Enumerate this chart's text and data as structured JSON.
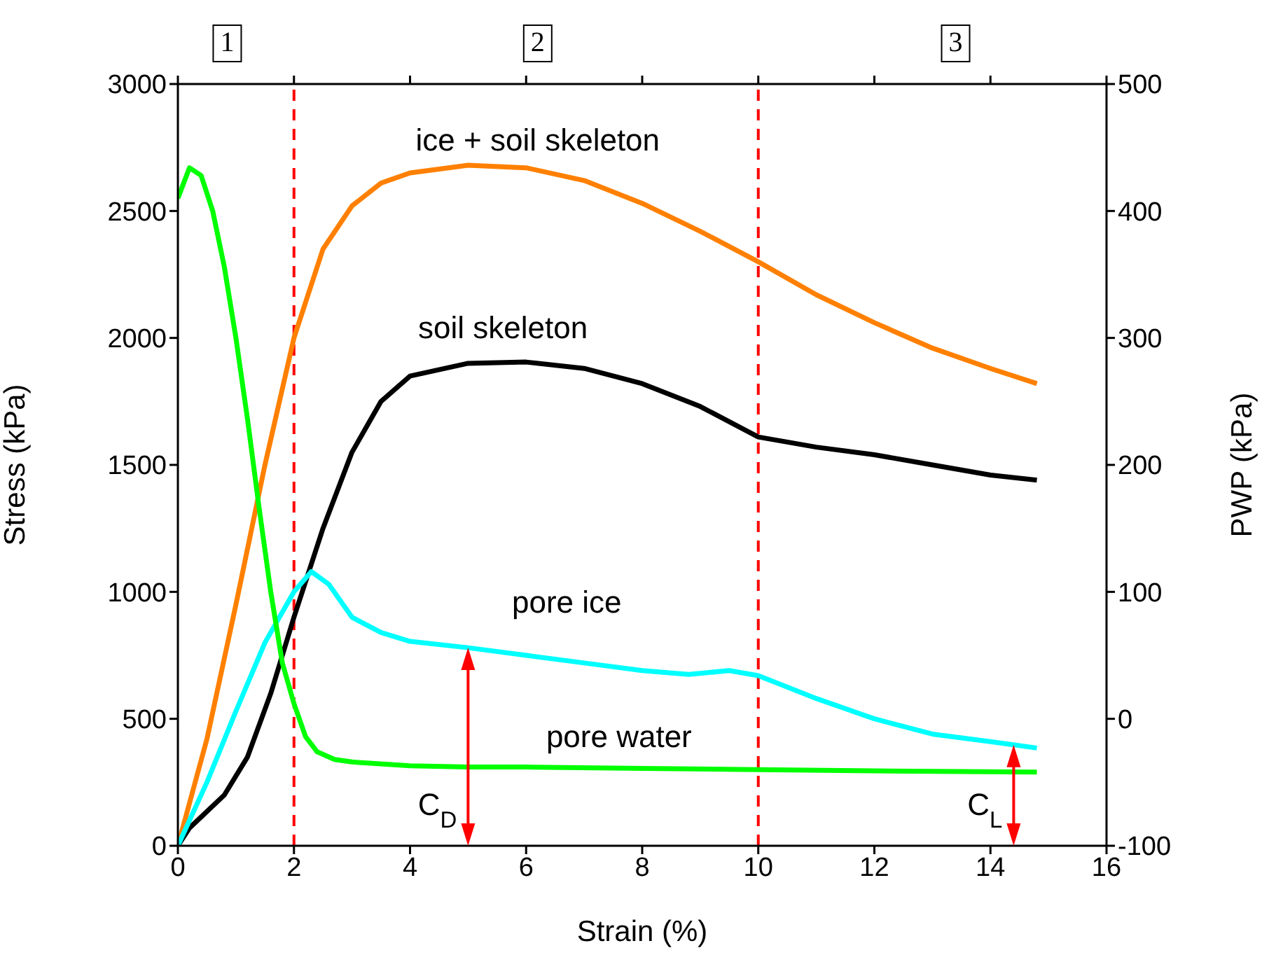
{
  "chart_data": {
    "type": "line",
    "xlabel": "Strain (%)",
    "ylabel": "Stress (kPa)",
    "y2label": "PWP (kPa)",
    "xlim": [
      0,
      16
    ],
    "xticks": [
      0,
      2,
      4,
      6,
      8,
      10,
      12,
      14,
      16
    ],
    "ylim": [
      0,
      3000
    ],
    "yticks": [
      0,
      500,
      1000,
      1500,
      2000,
      2500,
      3000
    ],
    "y2lim": [
      -100,
      500
    ],
    "y2ticks": [
      -100,
      0,
      100,
      200,
      300,
      400,
      500
    ],
    "grid": false,
    "marker": "none",
    "line_style": "solid",
    "series": [
      {
        "name": "ice + soil skeleton",
        "color": "#ff8000",
        "x": [
          0,
          0.5,
          1,
          1.5,
          2,
          2.5,
          3,
          3.5,
          4,
          5,
          6,
          7,
          8,
          9,
          10,
          11,
          12,
          13,
          14,
          14.8
        ],
        "values": [
          0,
          420,
          950,
          1500,
          2000,
          2350,
          2520,
          2610,
          2650,
          2680,
          2670,
          2620,
          2530,
          2420,
          2300,
          2170,
          2060,
          1960,
          1880,
          1820
        ]
      },
      {
        "name": "soil skeleton",
        "color": "#000000",
        "x": [
          0,
          0.2,
          0.8,
          1.2,
          1.6,
          2,
          2.5,
          3,
          3.5,
          4,
          5,
          6,
          7,
          8,
          9,
          10,
          11,
          12,
          13,
          14,
          14.8
        ],
        "values": [
          0,
          70,
          200,
          350,
          600,
          900,
          1250,
          1550,
          1750,
          1850,
          1900,
          1905,
          1880,
          1820,
          1730,
          1610,
          1570,
          1540,
          1500,
          1460,
          1440
        ]
      },
      {
        "name": "pore ice",
        "color": "#00ffff",
        "x": [
          0,
          0.5,
          1,
          1.5,
          2,
          2.3,
          2.6,
          3,
          3.5,
          4,
          5,
          6,
          7,
          8,
          8.8,
          9.5,
          10,
          11,
          12,
          13,
          14,
          14.8
        ],
        "values": [
          0,
          250,
          530,
          800,
          1000,
          1080,
          1030,
          900,
          840,
          805,
          780,
          750,
          720,
          690,
          675,
          690,
          670,
          580,
          500,
          440,
          410,
          385
        ]
      },
      {
        "name": "pore water",
        "color": "#00ff00",
        "axis": "y2",
        "x": [
          0,
          0.2,
          0.4,
          0.6,
          0.8,
          1,
          1.2,
          1.4,
          1.6,
          1.8,
          2,
          2.2,
          2.4,
          2.7,
          3,
          4,
          5,
          6,
          8,
          10,
          12,
          14.8
        ],
        "values": [
          410,
          434,
          428,
          400,
          356,
          300,
          236,
          166,
          100,
          44,
          12,
          -14,
          -26,
          -32,
          -34,
          -37,
          -38,
          -38,
          -39,
          -40,
          -41,
          -42
        ]
      }
    ],
    "ref_lines": [
      {
        "axis": "x",
        "value": 2,
        "color": "#ff0000",
        "line_style": "dashed"
      },
      {
        "axis": "x",
        "value": 10,
        "color": "#ff0000",
        "line_style": "dashed"
      }
    ],
    "annotations": [
      "1",
      "2",
      "3",
      "C$_{D}$",
      "C$_{L}$"
    ]
  }
}
